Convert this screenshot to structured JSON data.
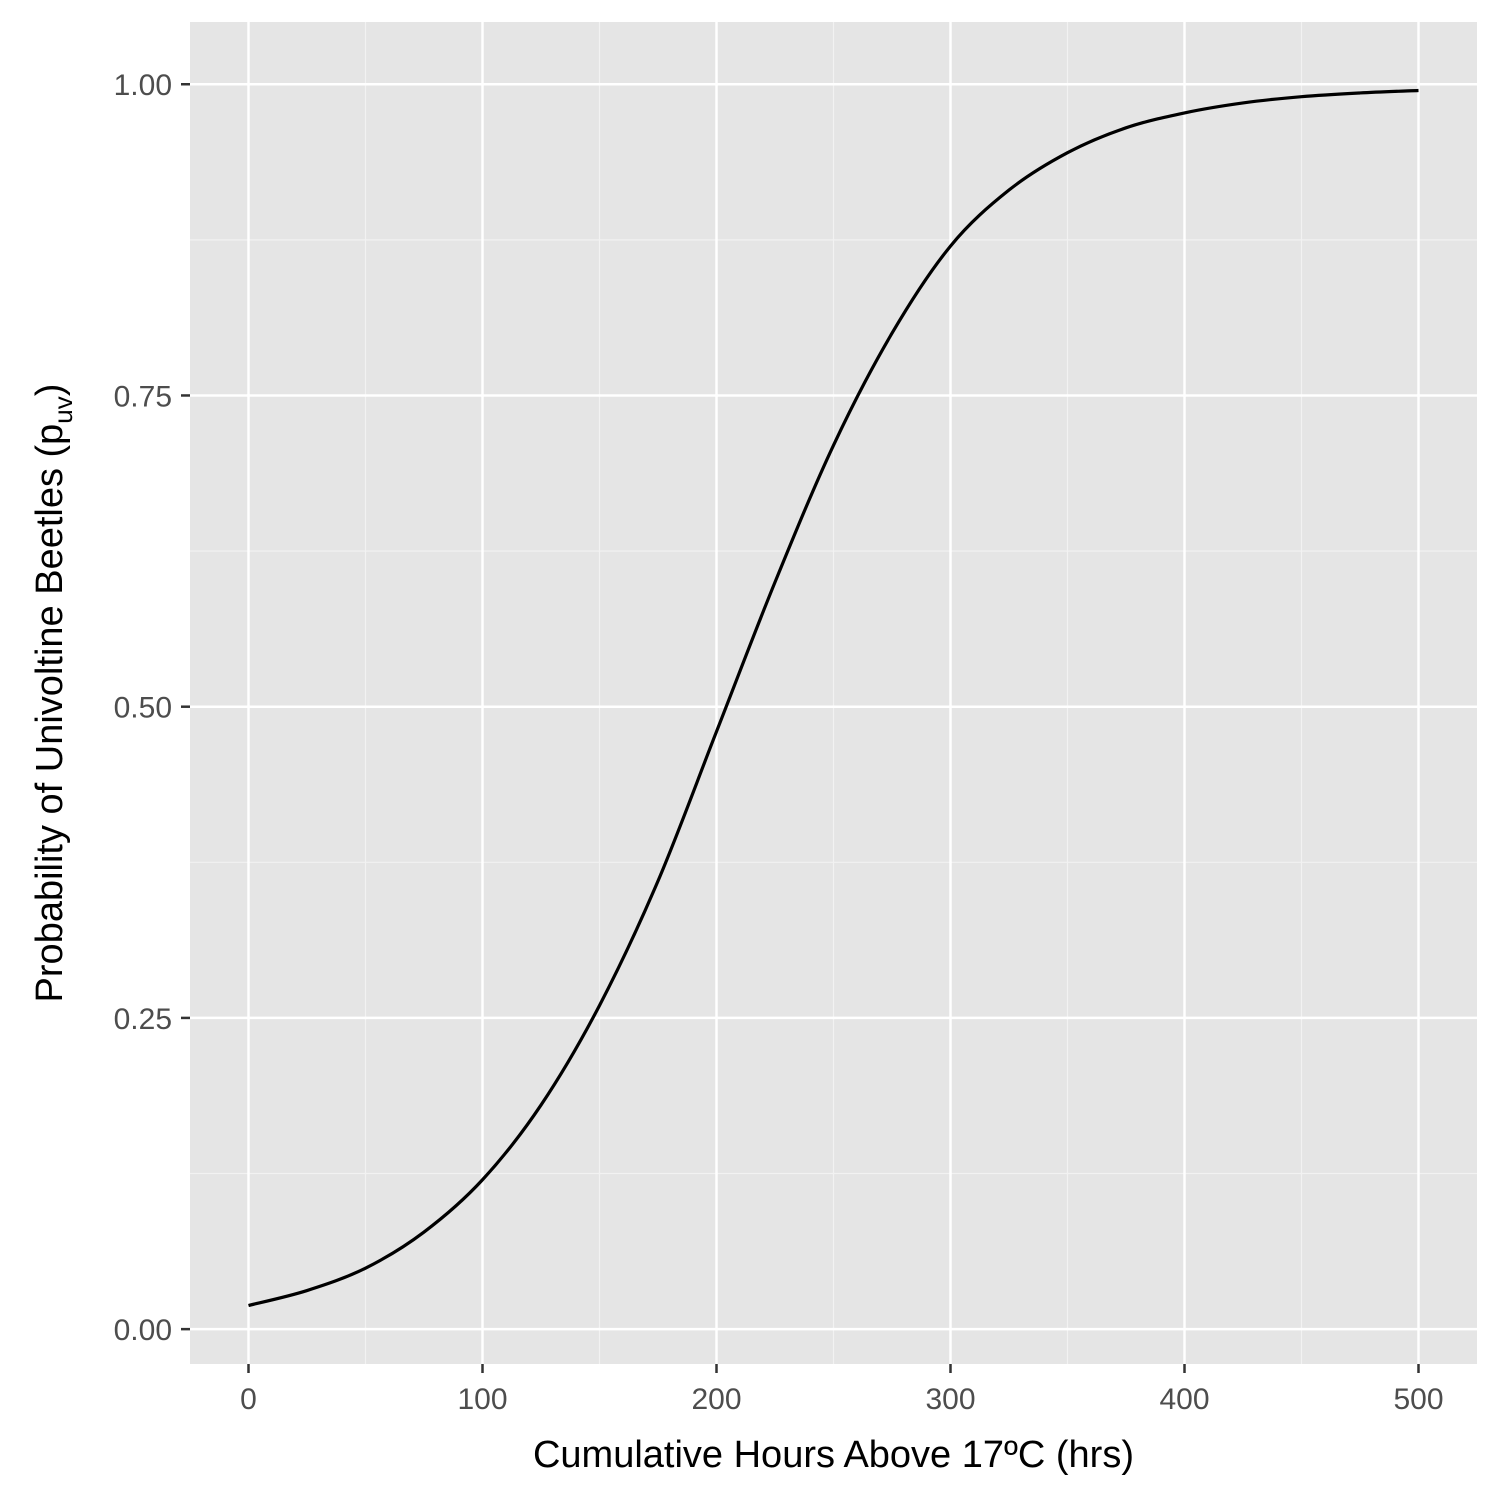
{
  "chart_data": {
    "type": "line",
    "title": "",
    "xlabel": "Cumulative Hours Above 17ºC (hrs)",
    "ylabel": {
      "main": "Probability of Univoltine Beetles (p",
      "subscript": "uv",
      "close": ")"
    },
    "xlim": [
      -25,
      525
    ],
    "ylim": [
      -0.028,
      1.05
    ],
    "x_ticks": [
      0,
      100,
      200,
      300,
      400,
      500
    ],
    "x_tick_labels": [
      "0",
      "100",
      "200",
      "300",
      "400",
      "500"
    ],
    "y_ticks": [
      0,
      0.25,
      0.5,
      0.75,
      1
    ],
    "y_tick_labels": [
      "0.00",
      "0.25",
      "0.50",
      "0.75",
      "1.00"
    ],
    "grid": true,
    "series": [
      {
        "color": "#000000",
        "x": [
          0,
          25,
          50,
          75,
          100,
          125,
          150,
          175,
          200,
          225,
          250,
          275,
          300,
          325,
          350,
          375,
          400,
          425,
          450,
          475,
          500
        ],
        "y": [
          0.019,
          0.031,
          0.049,
          0.078,
          0.12,
          0.18,
          0.26,
          0.36,
          0.48,
          0.6,
          0.71,
          0.8,
          0.87,
          0.915,
          0.945,
          0.965,
          0.977,
          0.985,
          0.99,
          0.993,
          0.995
        ]
      }
    ]
  },
  "colors": {
    "panel_background": "#E5E5E5",
    "major_grid": "#FFFFFF",
    "minor_grid": "#F2F2F2",
    "tick_text": "#4D4D4D",
    "tick_mark": "#333333",
    "axis_title": "#000000",
    "line": "#000000"
  }
}
